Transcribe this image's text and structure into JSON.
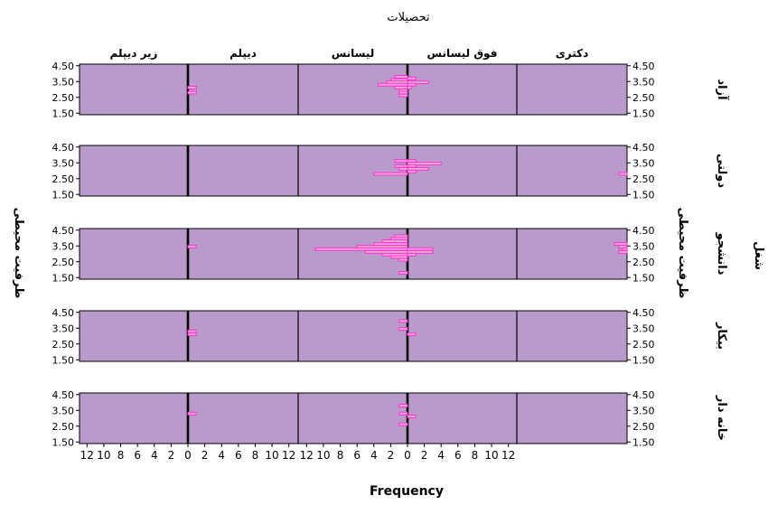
{
  "chart_data": {
    "type": "bar",
    "orientation": "horizontal",
    "layout": "faceted-pyramid",
    "column_facet_title": "تحصیلات",
    "row_facet_title": "شغل",
    "xlabel": "Frequency",
    "ylabel": "ظرفیت محیطی",
    "columns": [
      "زیر دیپلم",
      "دیپلم",
      "لیسانس",
      "فوق لیسانس",
      "دکتری"
    ],
    "rows": [
      "آزاد",
      "دولتی",
      "دانشجو",
      "بیکار",
      "خانه دار"
    ],
    "xlim": [
      0,
      13
    ],
    "x_tick_values": [
      0,
      2,
      4,
      6,
      8,
      10,
      12
    ],
    "x_tick_labels_left": [
      "12",
      "10",
      "8",
      "6",
      "4",
      "2",
      "0"
    ],
    "x_tick_labels_right": [
      "0",
      "2",
      "4",
      "6",
      "8",
      "10",
      "12"
    ],
    "ylim": [
      1.4,
      4.6
    ],
    "y_ticks": [
      "4.50",
      "3.50",
      "2.50",
      "1.50"
    ],
    "y_tick_values": [
      4.5,
      3.5,
      2.5,
      1.5
    ],
    "bin_width": 0.167,
    "panels": [
      {
        "row": 0,
        "col": 1,
        "bars": [
          [
            3.12,
            1
          ],
          [
            2.8,
            1
          ]
        ]
      },
      {
        "row": 0,
        "col": 2,
        "bars": [
          [
            3.8,
            1.5
          ],
          [
            3.6,
            2
          ],
          [
            3.45,
            2.5
          ],
          [
            3.3,
            3.5
          ],
          [
            3.12,
            1.5
          ],
          [
            2.95,
            1
          ],
          [
            2.8,
            1
          ],
          [
            2.62,
            1
          ]
        ]
      },
      {
        "row": 0,
        "col": 3,
        "bars": [
          [
            3.7,
            1
          ],
          [
            3.45,
            2.5
          ],
          [
            3.3,
            1
          ],
          [
            3.12,
            0.5
          ]
        ]
      },
      {
        "row": 1,
        "col": 2,
        "bars": [
          [
            3.62,
            1.5
          ],
          [
            3.3,
            1.5
          ],
          [
            3.12,
            1
          ],
          [
            2.8,
            4
          ]
        ]
      },
      {
        "row": 1,
        "col": 3,
        "bars": [
          [
            3.62,
            1
          ],
          [
            3.45,
            4
          ],
          [
            3.3,
            1
          ],
          [
            3.12,
            2.5
          ],
          [
            2.95,
            1
          ]
        ]
      },
      {
        "row": 1,
        "col": 4,
        "bars": [
          [
            2.8,
            1
          ]
        ]
      },
      {
        "row": 2,
        "col": 1,
        "bars": [
          [
            3.45,
            1
          ]
        ]
      },
      {
        "row": 2,
        "col": 2,
        "bars": [
          [
            4.12,
            1.5
          ],
          [
            3.95,
            2
          ],
          [
            3.8,
            3
          ],
          [
            3.62,
            4
          ],
          [
            3.45,
            6
          ],
          [
            3.3,
            11
          ],
          [
            3.12,
            5
          ],
          [
            2.95,
            3
          ],
          [
            2.8,
            2
          ],
          [
            2.62,
            1
          ],
          [
            1.8,
            1
          ]
        ]
      },
      {
        "row": 2,
        "col": 3,
        "bars": [
          [
            3.3,
            3
          ],
          [
            3.12,
            3
          ],
          [
            2.95,
            1
          ]
        ]
      },
      {
        "row": 2,
        "col": 4,
        "bars": [
          [
            3.62,
            1.5
          ],
          [
            3.45,
            1
          ],
          [
            3.3,
            0.5
          ],
          [
            3.12,
            1
          ]
        ]
      },
      {
        "row": 3,
        "col": 1,
        "bars": [
          [
            3.3,
            1
          ],
          [
            3.12,
            1
          ]
        ]
      },
      {
        "row": 3,
        "col": 2,
        "bars": [
          [
            3.95,
            1
          ],
          [
            3.45,
            1
          ]
        ]
      },
      {
        "row": 3,
        "col": 3,
        "bars": [
          [
            3.12,
            1
          ]
        ]
      },
      {
        "row": 4,
        "col": 1,
        "bars": [
          [
            3.3,
            1
          ]
        ]
      },
      {
        "row": 4,
        "col": 2,
        "bars": [
          [
            3.8,
            1
          ],
          [
            3.3,
            1
          ],
          [
            2.62,
            1
          ]
        ]
      },
      {
        "row": 4,
        "col": 3,
        "bars": [
          [
            3.12,
            1
          ]
        ]
      }
    ],
    "colors": {
      "panel_fill": "#b99bcb",
      "bar_stroke": "#ff33cc",
      "bar_fill": "#f1a6dc",
      "axis": "#000000",
      "text": "#000000"
    },
    "grid": false,
    "legend": "none"
  }
}
